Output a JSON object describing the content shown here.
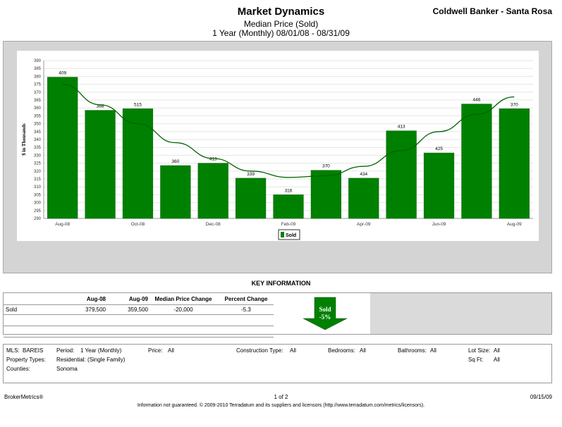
{
  "header": {
    "title": "Market Dynamics",
    "subtitle": "Median Price (Sold)",
    "period": "1 Year (Monthly) 08/01/08 - 08/31/09",
    "brand": "Coldwell Banker - Santa Rosa"
  },
  "chart_data": {
    "type": "bar",
    "ylabel": "$ in Thousands",
    "ylim": [
      290,
      390
    ],
    "yticks": [
      290,
      295,
      300,
      305,
      310,
      315,
      320,
      325,
      330,
      335,
      340,
      345,
      350,
      355,
      360,
      365,
      370,
      375,
      380,
      385,
      390
    ],
    "grid": true,
    "xtick_labels": [
      "Aug-08",
      "",
      "Oct-08",
      "",
      "Dec-08",
      "",
      "Feb-09",
      "",
      "Apr-09",
      "",
      "Jun-09",
      "",
      "Aug-09"
    ],
    "categories": [
      "Aug-08",
      "Sep-08",
      "Oct-08",
      "Nov-08",
      "Dec-08",
      "Jan-09",
      "Feb-09",
      "Mar-09",
      "Apr-09",
      "May-09",
      "Jun-09",
      "Jul-09",
      "Aug-09"
    ],
    "series": [
      {
        "name": "Sold",
        "color": "#008000",
        "values": [
          379.5,
          358.5,
          359.5,
          323.5,
          325,
          315.5,
          305,
          320.5,
          315.5,
          345.5,
          331.5,
          362.5,
          359.5
        ],
        "labels": [
          "409",
          "388",
          "515",
          "360",
          "413",
          "339",
          "316",
          "370",
          "434",
          "413",
          "425",
          "446",
          "370"
        ]
      }
    ],
    "trendline": {
      "type": "polynomial",
      "color": "#006400",
      "values": [
        375,
        362,
        350,
        338,
        328,
        320,
        316,
        317,
        323,
        333,
        345,
        356,
        367
      ]
    },
    "legend": "bottom-center"
  },
  "key_info": {
    "title": "KEY INFORMATION",
    "headers": [
      "",
      "Aug-08",
      "Aug-09",
      "Median Price Change",
      "Percent Change"
    ],
    "rows": [
      {
        "label": "Sold",
        "aug08": "379,500",
        "aug09": "359,500",
        "change": "-20,000",
        "pct": "-5.3"
      }
    ],
    "arrow": {
      "label": "Sold",
      "value": "-5%",
      "color": "#008000"
    }
  },
  "criteria": {
    "mls_label": "MLS:",
    "mls_value": "BAREIS",
    "period_label": "Period:",
    "period_value": "1 Year (Monthly)",
    "price_label": "Price:",
    "price_value": "All",
    "construction_label": "Construction Type:",
    "construction_value": "All",
    "bedrooms_label": "Bedrooms:",
    "bedrooms_value": "All",
    "bathrooms_label": "Bathrooms:",
    "bathrooms_value": "All",
    "lotsize_label": "Lot Size:",
    "lotsize_value": "All",
    "proptypes_label": "Property Types:",
    "proptypes_value": "Residential: (Single Family)",
    "sqft_label": "Sq Ft:",
    "sqft_value": "All",
    "counties_label": "Counties:",
    "counties_value": "Sonoma"
  },
  "footer": {
    "left": "BrokerMetrics®",
    "center": "1 of 2",
    "right": "09/15/09",
    "disclaimer": "Information not guaranteed.  © 2009-2010 Terradatum and its suppliers and licensors (http://www.terradatum.com/metrics/licensors)."
  }
}
